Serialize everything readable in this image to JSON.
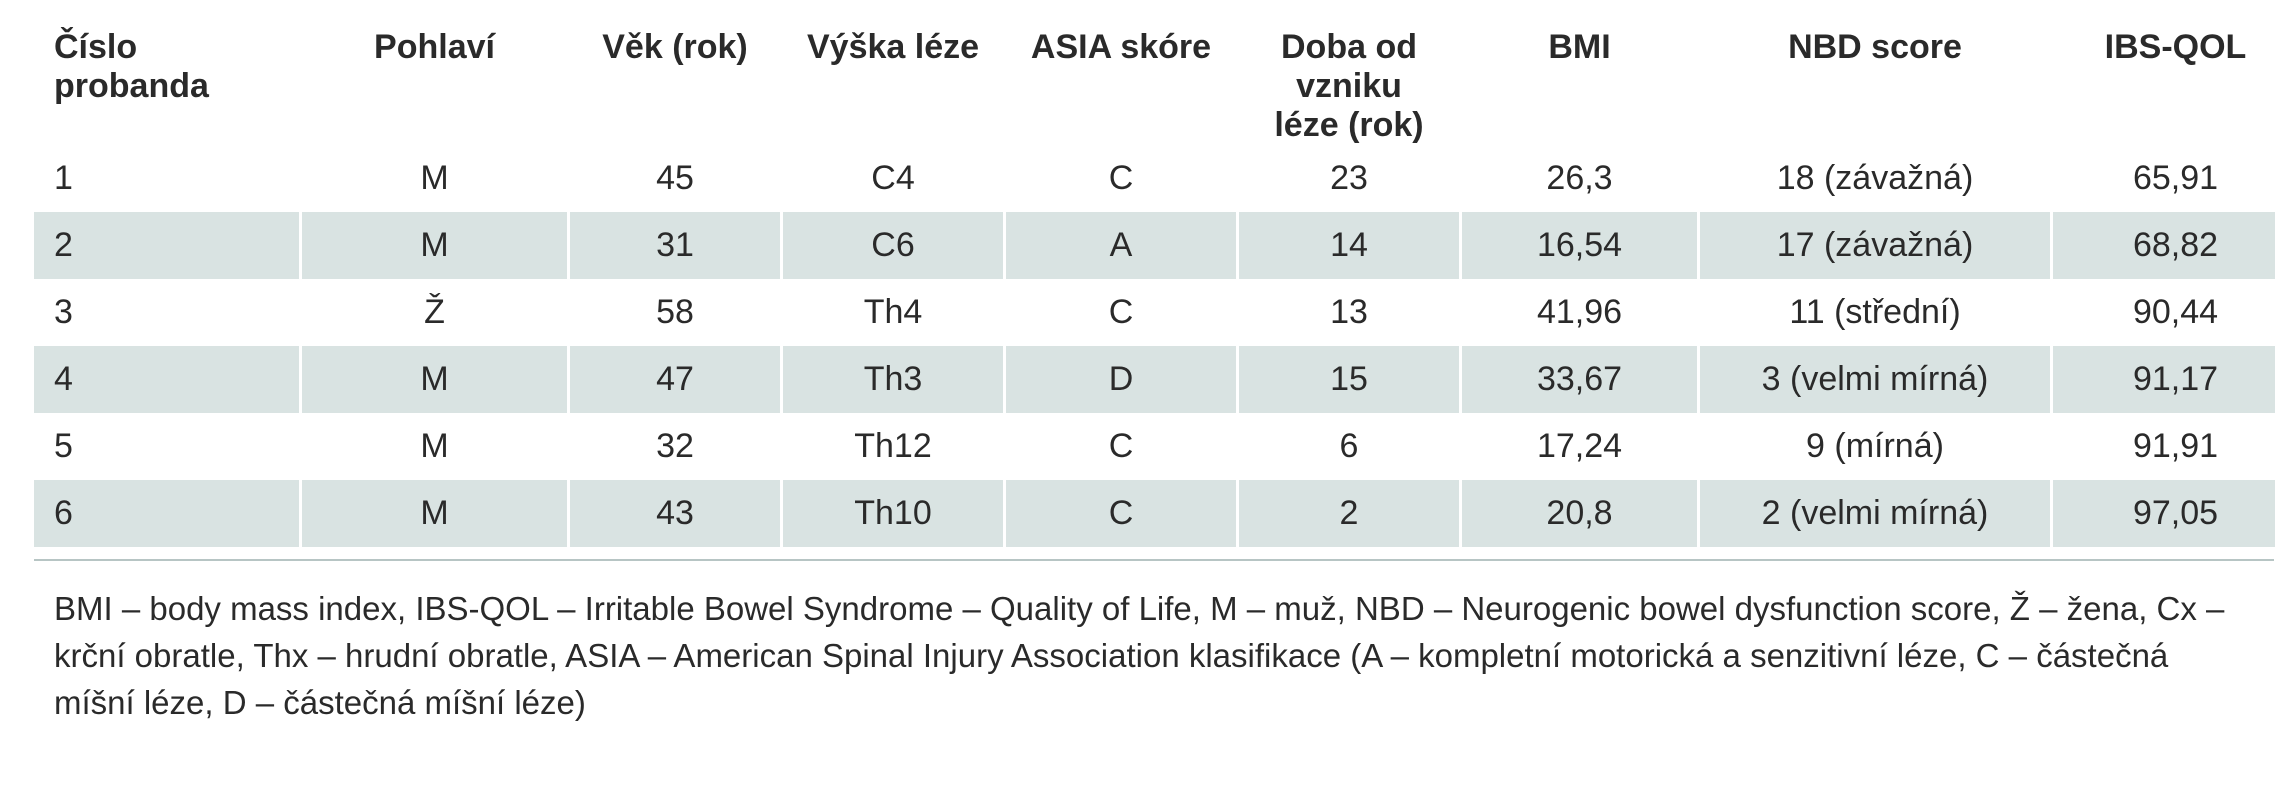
{
  "table": {
    "headers": [
      [
        "Číslo",
        "probanda"
      ],
      [
        "Pohlaví"
      ],
      [
        "Věk (rok)"
      ],
      [
        "Výška léze"
      ],
      [
        "ASIA skóre"
      ],
      [
        "Doba od",
        "vzniku",
        "léze (rok)"
      ],
      [
        "BMI"
      ],
      [
        "NBD score"
      ],
      [
        "IBS-QOL"
      ]
    ],
    "rows": [
      [
        "1",
        "M",
        "45",
        "C4",
        "C",
        "23",
        "26,3",
        "18 (závažná)",
        "65,91"
      ],
      [
        "2",
        "M",
        "31",
        "C6",
        "A",
        "14",
        "16,54",
        "17 (závažná)",
        "68,82"
      ],
      [
        "3",
        "Ž",
        "58",
        "Th4",
        "C",
        "13",
        "41,96",
        "11 (střední)",
        "90,44"
      ],
      [
        "4",
        "M",
        "47",
        "Th3",
        "D",
        "15",
        "33,67",
        "3 (velmi mírná)",
        "91,17"
      ],
      [
        "5",
        "M",
        "32",
        "Th12",
        "C",
        "6",
        "17,24",
        "9 (mírná)",
        "91,91"
      ],
      [
        "6",
        "M",
        "43",
        "Th10",
        "C",
        "2",
        "20,8",
        "2 (velmi mírná)",
        "97,05"
      ]
    ]
  },
  "footnote": "BMI – body mass index, IBS-QOL – Irritable Bowel Syndrome – Quality of Life, M – muž, NBD – Neurogenic bowel dysfunction score, Ž – žena, Cx – krční obratle, Thx – hrudní obratle, ASIA – American Spinal Injury Association klasifikace (A – kompletní motorická a senzitivní léze, C – částečná míšní léze, D – částečná míšní léze)",
  "colors": {
    "row_shade": "#d9e3e2",
    "rule": "#b7c5c4",
    "text": "#2a2a2a"
  }
}
